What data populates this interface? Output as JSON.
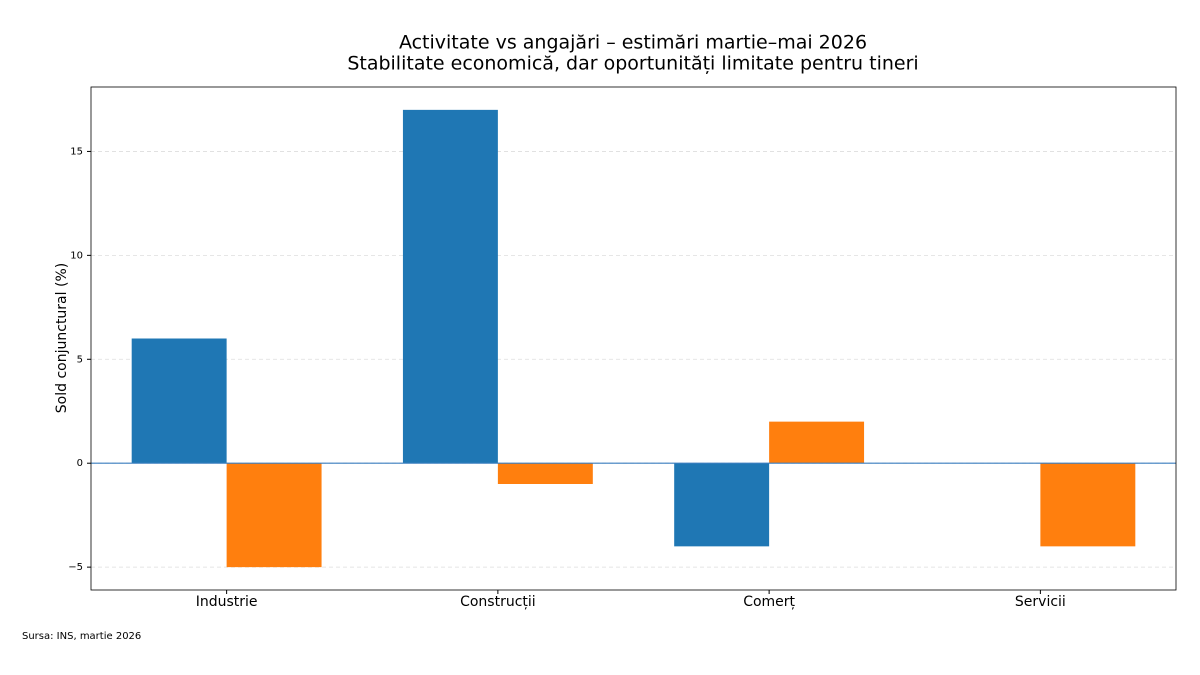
{
  "chart_data": {
    "type": "bar",
    "title": "Activitate vs angajări – estimări martie–mai 2026",
    "subtitle": "Stabilitate economică, dar oportunități limitate pentru tineri",
    "y_label": "Sold conjunctural (%)",
    "note": "Sursa: INS, martie 2026",
    "categories": [
      "Industrie",
      "Construcții",
      "Comerț",
      "Servicii"
    ],
    "series": [
      {
        "color": "#1f77b4",
        "values": [
          6,
          17,
          -4,
          0
        ]
      },
      {
        "color": "#ff7f0e",
        "values": [
          -5,
          -1,
          2,
          -4
        ]
      }
    ],
    "ylim": [
      -6.1,
      18.1
    ],
    "yticks": [
      {
        "value": -5,
        "label": "−5"
      },
      0,
      5,
      10,
      15
    ],
    "grid": true
  }
}
